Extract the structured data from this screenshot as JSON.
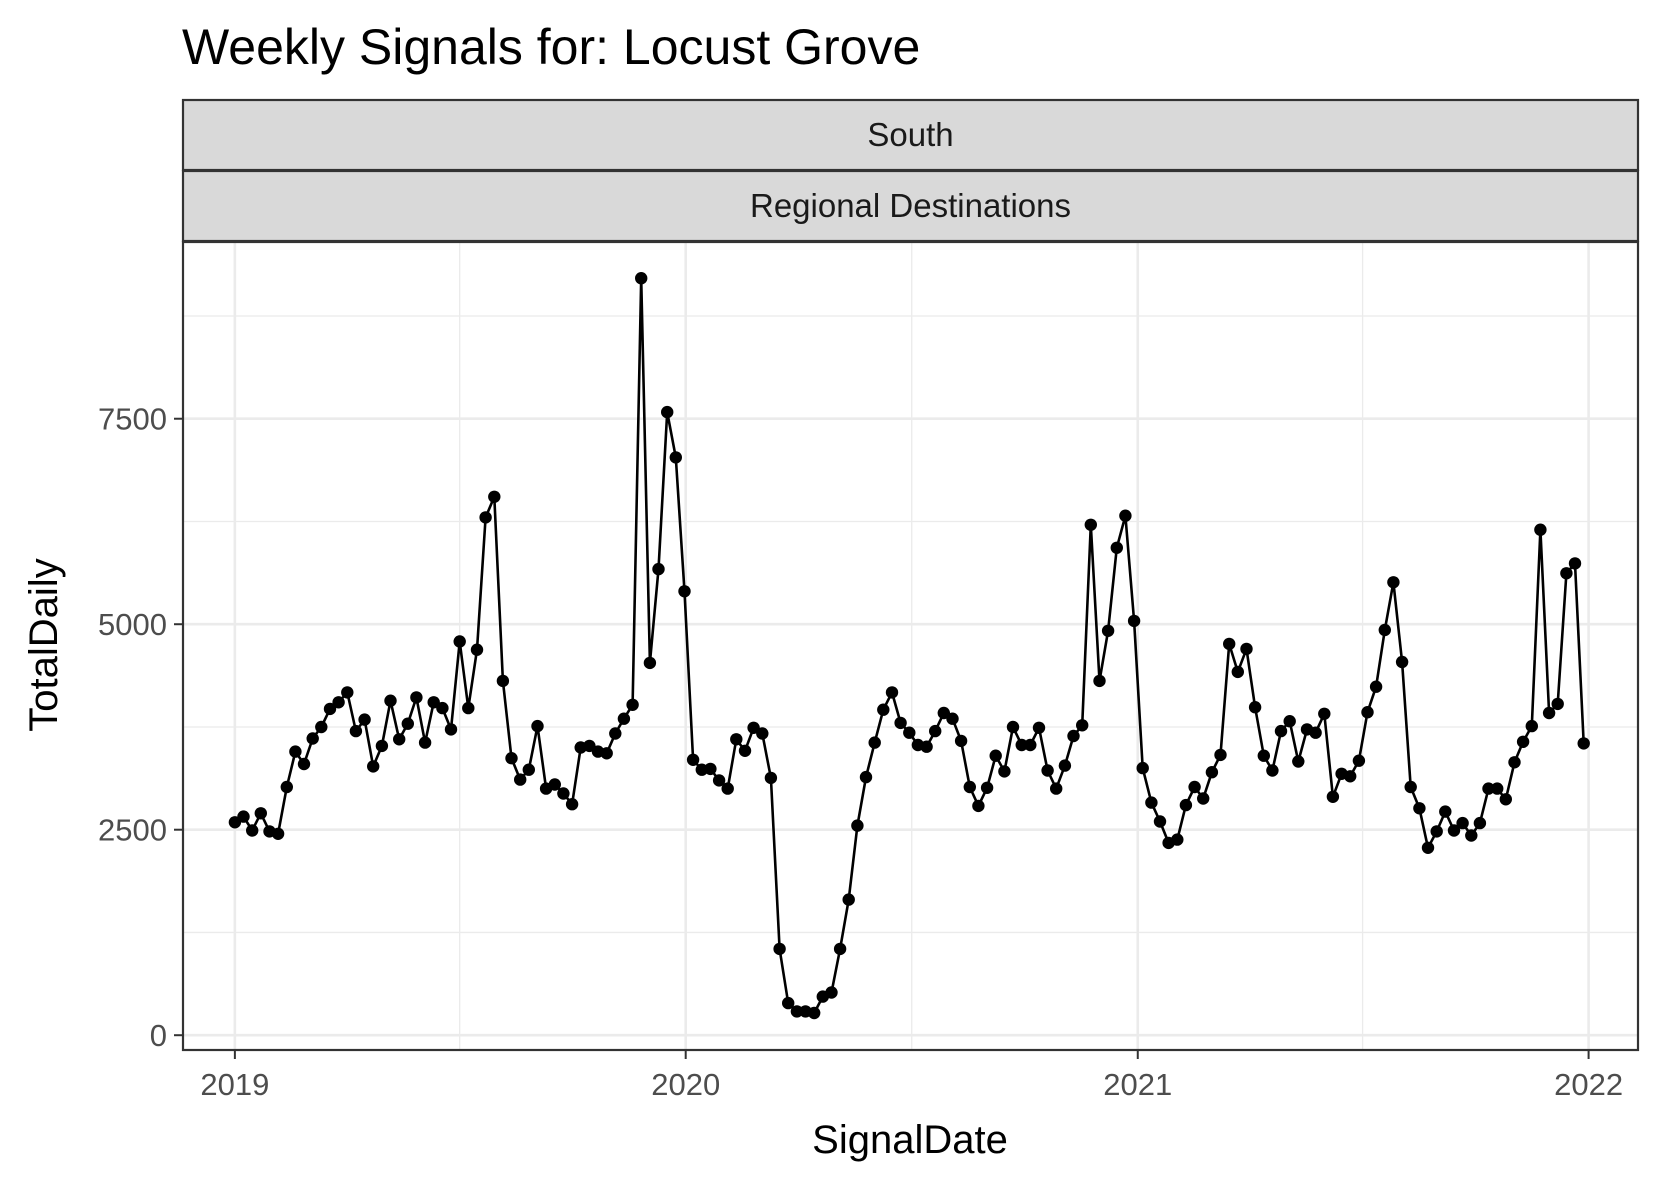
{
  "title": "Weekly Signals for: Locust Grove",
  "facet_strips": [
    "South",
    "Regional Destinations"
  ],
  "colors": {
    "line": "#000000",
    "strip_fill": "#d9d9d9",
    "grid": "#ebebeb",
    "panel_border": "#333333"
  },
  "chart_data": {
    "type": "line",
    "title": "Weekly Signals for: Locust Grove",
    "xlabel": "SignalDate",
    "ylabel": "TotalDaily",
    "x_ticks": [
      "2019",
      "2020",
      "2021",
      "2022"
    ],
    "y_ticks": [
      0,
      2500,
      5000,
      7500
    ],
    "xlim": [
      "2018-11-20",
      "2022-02-10"
    ],
    "ylim": [
      -180,
      9650
    ],
    "grid": true,
    "markers": true,
    "series": [
      {
        "x": [
          "2019-01-01",
          "2019-01-08",
          "2019-01-15",
          "2019-01-22",
          "2019-01-29",
          "2019-02-05",
          "2019-02-12",
          "2019-02-19",
          "2019-02-26",
          "2019-03-05",
          "2019-03-12",
          "2019-03-19",
          "2019-03-26",
          "2019-04-02",
          "2019-04-09",
          "2019-04-16",
          "2019-04-23",
          "2019-04-30",
          "2019-05-07",
          "2019-05-14",
          "2019-05-21",
          "2019-05-28",
          "2019-06-04",
          "2019-06-11",
          "2019-06-18",
          "2019-06-25",
          "2019-07-02",
          "2019-07-09",
          "2019-07-16",
          "2019-07-23",
          "2019-07-30",
          "2019-08-06",
          "2019-08-13",
          "2019-08-20",
          "2019-08-27",
          "2019-09-03",
          "2019-09-10",
          "2019-09-17",
          "2019-09-24",
          "2019-10-01",
          "2019-10-08",
          "2019-10-15",
          "2019-10-22",
          "2019-10-29",
          "2019-11-05",
          "2019-11-12",
          "2019-11-19",
          "2019-11-26",
          "2019-12-03",
          "2019-12-10",
          "2019-12-17",
          "2019-12-24",
          "2019-12-31",
          "2020-01-07",
          "2020-01-14",
          "2020-01-21",
          "2020-01-28",
          "2020-02-04",
          "2020-02-11",
          "2020-02-18",
          "2020-02-25",
          "2020-03-03",
          "2020-03-10",
          "2020-03-17",
          "2020-03-24",
          "2020-03-31",
          "2020-04-07",
          "2020-04-14",
          "2020-04-21",
          "2020-04-28",
          "2020-05-05",
          "2020-05-12",
          "2020-05-19",
          "2020-05-26",
          "2020-06-02",
          "2020-06-09",
          "2020-06-16",
          "2020-06-23",
          "2020-06-30",
          "2020-07-07",
          "2020-07-14",
          "2020-07-21",
          "2020-07-28",
          "2020-08-04",
          "2020-08-11",
          "2020-08-18",
          "2020-08-25",
          "2020-09-01",
          "2020-09-08",
          "2020-09-15",
          "2020-09-22",
          "2020-09-29",
          "2020-10-06",
          "2020-10-13",
          "2020-10-20",
          "2020-10-27",
          "2020-11-03",
          "2020-11-10",
          "2020-11-17",
          "2020-11-24",
          "2020-12-01",
          "2020-12-08",
          "2020-12-15",
          "2020-12-22",
          "2020-12-29",
          "2021-01-05",
          "2021-01-12",
          "2021-01-19",
          "2021-01-26",
          "2021-02-02",
          "2021-02-09",
          "2021-02-16",
          "2021-02-23",
          "2021-03-02",
          "2021-03-09",
          "2021-03-16",
          "2021-03-23",
          "2021-03-30",
          "2021-04-06",
          "2021-04-13",
          "2021-04-20",
          "2021-04-27",
          "2021-05-04",
          "2021-05-11",
          "2021-05-18",
          "2021-05-25",
          "2021-06-01",
          "2021-06-08",
          "2021-06-15",
          "2021-06-22",
          "2021-06-29",
          "2021-07-06",
          "2021-07-13",
          "2021-07-20",
          "2021-07-27",
          "2021-08-03",
          "2021-08-10",
          "2021-08-17",
          "2021-08-24",
          "2021-08-31",
          "2021-09-07",
          "2021-09-14",
          "2021-09-21",
          "2021-09-28",
          "2021-10-05",
          "2021-10-12",
          "2021-10-19",
          "2021-10-26",
          "2021-11-02",
          "2021-11-09",
          "2021-11-16",
          "2021-11-23",
          "2021-11-30",
          "2021-12-07",
          "2021-12-14",
          "2021-12-21",
          "2021-12-28"
        ],
        "y": [
          2590,
          2660,
          2490,
          2700,
          2480,
          2450,
          3020,
          3450,
          3300,
          3610,
          3750,
          3970,
          4050,
          4170,
          3700,
          3840,
          3270,
          3520,
          4070,
          3600,
          3790,
          4110,
          3560,
          4050,
          3980,
          3720,
          4790,
          3980,
          4690,
          6300,
          6550,
          4310,
          3370,
          3110,
          3230,
          3760,
          3000,
          3050,
          2940,
          2810,
          3500,
          3520,
          3450,
          3430,
          3670,
          3850,
          4020,
          9210,
          4530,
          5670,
          7580,
          7030,
          5400,
          3350,
          3230,
          3240,
          3100,
          3000,
          3600,
          3460,
          3740,
          3670,
          3130,
          1050,
          390,
          290,
          290,
          270,
          470,
          520,
          1050,
          1650,
          2550,
          3140,
          3560,
          3960,
          4170,
          3800,
          3680,
          3530,
          3510,
          3700,
          3920,
          3850,
          3580,
          3020,
          2790,
          3010,
          3400,
          3210,
          3750,
          3530,
          3530,
          3740,
          3220,
          3000,
          3280,
          3640,
          3770,
          6210,
          4310,
          4920,
          5930,
          6320,
          5040,
          3250,
          2830,
          2600,
          2340,
          2380,
          2800,
          3020,
          2880,
          3200,
          3410,
          4760,
          4420,
          4700,
          3990,
          3400,
          3220,
          3700,
          3820,
          3330,
          3720,
          3680,
          3910,
          2900,
          3180,
          3150,
          3340,
          3930,
          4240,
          4930,
          5510,
          4540,
          3020,
          2760,
          2280,
          2480,
          2720,
          2490,
          2580,
          2430,
          2580,
          3000,
          3000,
          2870,
          3320,
          3570,
          3760,
          6150,
          3920,
          4030,
          5620,
          5740,
          3550
        ]
      }
    ]
  }
}
